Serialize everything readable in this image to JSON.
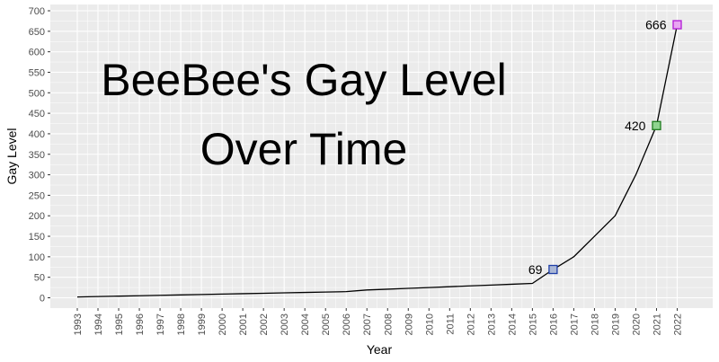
{
  "chart_data": {
    "type": "line",
    "title_lines": [
      "BeeBee's Gay Level",
      "Over Time"
    ],
    "xlabel": "Year",
    "ylabel": "Gay Level",
    "xlim": [
      1993,
      2022
    ],
    "ylim": [
      0,
      700
    ],
    "x_ticks": [
      1993,
      1994,
      1995,
      1996,
      1997,
      1998,
      1999,
      2000,
      2001,
      2002,
      2003,
      2004,
      2005,
      2006,
      2007,
      2008,
      2009,
      2010,
      2011,
      2012,
      2013,
      2014,
      2015,
      2016,
      2017,
      2018,
      2019,
      2020,
      2021,
      2022
    ],
    "y_ticks": [
      0,
      50,
      100,
      150,
      200,
      250,
      300,
      350,
      400,
      450,
      500,
      550,
      600,
      650,
      700
    ],
    "grid": true,
    "background_color": "#ebebeb",
    "grid_color": "#ffffff",
    "line_color": "#000000",
    "series": [
      {
        "x": [
          1993,
          1994,
          1995,
          1996,
          1997,
          1998,
          1999,
          2000,
          2001,
          2002,
          2003,
          2004,
          2005,
          2006,
          2007,
          2008,
          2009,
          2010,
          2011,
          2012,
          2013,
          2014,
          2015,
          2016,
          2017,
          2018,
          2019,
          2020,
          2021,
          2022
        ],
        "y": [
          2,
          3,
          4,
          5,
          6,
          7,
          8,
          9,
          10,
          11,
          12,
          13,
          14,
          15,
          19,
          21,
          23,
          25,
          27,
          29,
          31,
          33,
          35,
          69,
          100,
          150,
          200,
          300,
          420,
          666
        ]
      }
    ],
    "highlighted_points": [
      {
        "x": 2016,
        "y": 69,
        "label": "69",
        "fill": "#aab7d6",
        "stroke": "#1f3fa8"
      },
      {
        "x": 2021,
        "y": 420,
        "label": "420",
        "fill": "#8fd48f",
        "stroke": "#1e7a1e"
      },
      {
        "x": 2022,
        "y": 666,
        "label": "666",
        "fill": "#e9a6f2",
        "stroke": "#b21ad6"
      }
    ]
  }
}
